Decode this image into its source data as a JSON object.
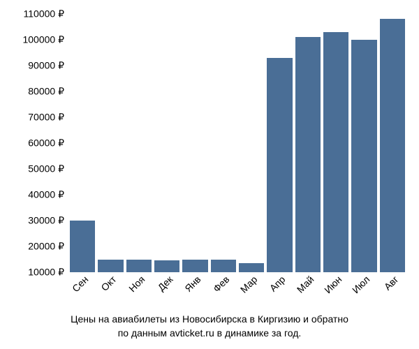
{
  "chart": {
    "type": "bar",
    "categories": [
      "Сен",
      "Окт",
      "Ноя",
      "Дек",
      "Янв",
      "Фев",
      "Мар",
      "Апр",
      "Май",
      "Июн",
      "Июл",
      "Авг"
    ],
    "values": [
      30000,
      15000,
      15000,
      14500,
      15000,
      15000,
      13500,
      93000,
      101000,
      103000,
      100000,
      108000
    ],
    "bar_color": "#4a6e96",
    "background_color": "#ffffff",
    "y_min": 10000,
    "y_max": 110000,
    "y_ticks": [
      10000,
      20000,
      30000,
      40000,
      50000,
      60000,
      70000,
      80000,
      90000,
      100000,
      110000
    ],
    "y_tick_labels": [
      "10000 ₽",
      "20000 ₽",
      "30000 ₽",
      "40000 ₽",
      "50000 ₽",
      "60000 ₽",
      "70000 ₽",
      "80000 ₽",
      "90000 ₽",
      "100000 ₽",
      "110000 ₽"
    ],
    "axis_fontsize": 14,
    "caption_fontsize": 14,
    "x_label_rotation": -45,
    "bar_gap": 4
  },
  "caption": {
    "line1": "Цены на авиабилеты из Новосибирска в Киргизию и обратно",
    "line2": "по данным avticket.ru в динамике за год."
  }
}
